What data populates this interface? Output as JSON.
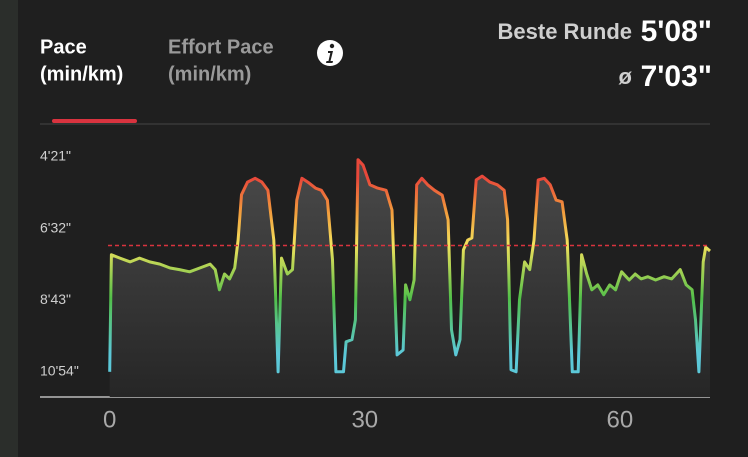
{
  "tabs": [
    {
      "title": "Pace",
      "unit": "(min/km)"
    },
    {
      "title": "Effort Pace",
      "unit": "(min/km)"
    }
  ],
  "stats": {
    "best_lap_label": "Beste Runde",
    "best_lap": "5'08\"",
    "average_symbol": "ø",
    "average": "7'03\""
  },
  "chart_data": {
    "type": "line",
    "x": [
      0,
      0.2,
      1.2,
      2.4,
      3.5,
      4.7,
      5.9,
      7.1,
      8.2,
      9.4,
      10.6,
      11.8,
      12.4,
      12.9,
      13.5,
      14.1,
      14.7,
      15.1,
      15.5,
      16.2,
      17.1,
      17.9,
      18.6,
      19.3,
      19.8,
      20.2,
      20.9,
      21.5,
      22.0,
      22.6,
      23.3,
      24.2,
      24.9,
      25.6,
      26.2,
      26.6,
      27.5,
      27.8,
      28.5,
      28.9,
      29.2,
      29.8,
      30.6,
      31.5,
      32.5,
      33.2,
      33.8,
      34.5,
      34.8,
      35.3,
      35.8,
      36.1,
      36.7,
      37.4,
      38.2,
      39.1,
      39.8,
      40.2,
      40.7,
      41.2,
      41.6,
      42.1,
      42.6,
      43.1,
      43.8,
      44.7,
      45.6,
      46.4,
      46.8,
      47.2,
      47.8,
      48.2,
      48.8,
      49.4,
      49.9,
      50.4,
      51.1,
      51.8,
      52.5,
      53.2,
      53.8,
      54.4,
      55.1,
      55.5,
      56.1,
      56.7,
      57.4,
      58.1,
      58.8,
      59.5,
      60.2,
      61.1,
      61.8,
      62.5,
      63.3,
      64.2,
      65.2,
      66.1,
      67.1,
      67.8,
      68.5,
      68.9,
      69.3,
      69.8,
      70.1,
      70.6
    ],
    "series": [
      {
        "name": "Pace",
        "values": [
          654,
          440,
          446,
          453,
          446,
          453,
          457,
          464,
          467,
          471,
          464,
          457,
          467,
          504,
          475,
          484,
          464,
          413,
          330,
          307,
          300,
          307,
          322,
          413,
          654,
          446,
          475,
          467,
          340,
          300,
          307,
          318,
          322,
          340,
          449,
          654,
          654,
          599,
          595,
          559,
          266,
          276,
          312,
          318,
          322,
          358,
          623,
          614,
          495,
          522,
          486,
          312,
          300,
          312,
          322,
          331,
          376,
          577,
          623,
          595,
          431,
          413,
          409,
          303,
          296,
          307,
          312,
          322,
          376,
          650,
          654,
          522,
          453,
          467,
          413,
          303,
          300,
          312,
          340,
          343,
          413,
          654,
          654,
          440,
          475,
          504,
          495,
          513,
          495,
          504,
          471,
          486,
          475,
          484,
          480,
          486,
          480,
          484,
          467,
          495,
          504,
          559,
          654,
          453,
          426,
          433
        ]
      }
    ],
    "xlim": [
      -8.2,
      70.6
    ],
    "xticks": [
      0,
      30,
      60
    ],
    "ylim": [
      700,
      230
    ],
    "yticks": [
      {
        "value": 261,
        "label": "4'21\""
      },
      {
        "value": 392,
        "label": "6'32\""
      },
      {
        "value": 523,
        "label": "8'43\""
      },
      {
        "value": 654,
        "label": "10'54\""
      }
    ],
    "reference_line": 423,
    "reference_color": "#d9333f",
    "color_stops": [
      {
        "value": 300,
        "color": "#e8483a"
      },
      {
        "value": 360,
        "color": "#f29a3c"
      },
      {
        "value": 420,
        "color": "#f3e15c"
      },
      {
        "value": 520,
        "color": "#52c04a"
      },
      {
        "value": 620,
        "color": "#5cc8d8"
      }
    ]
  }
}
